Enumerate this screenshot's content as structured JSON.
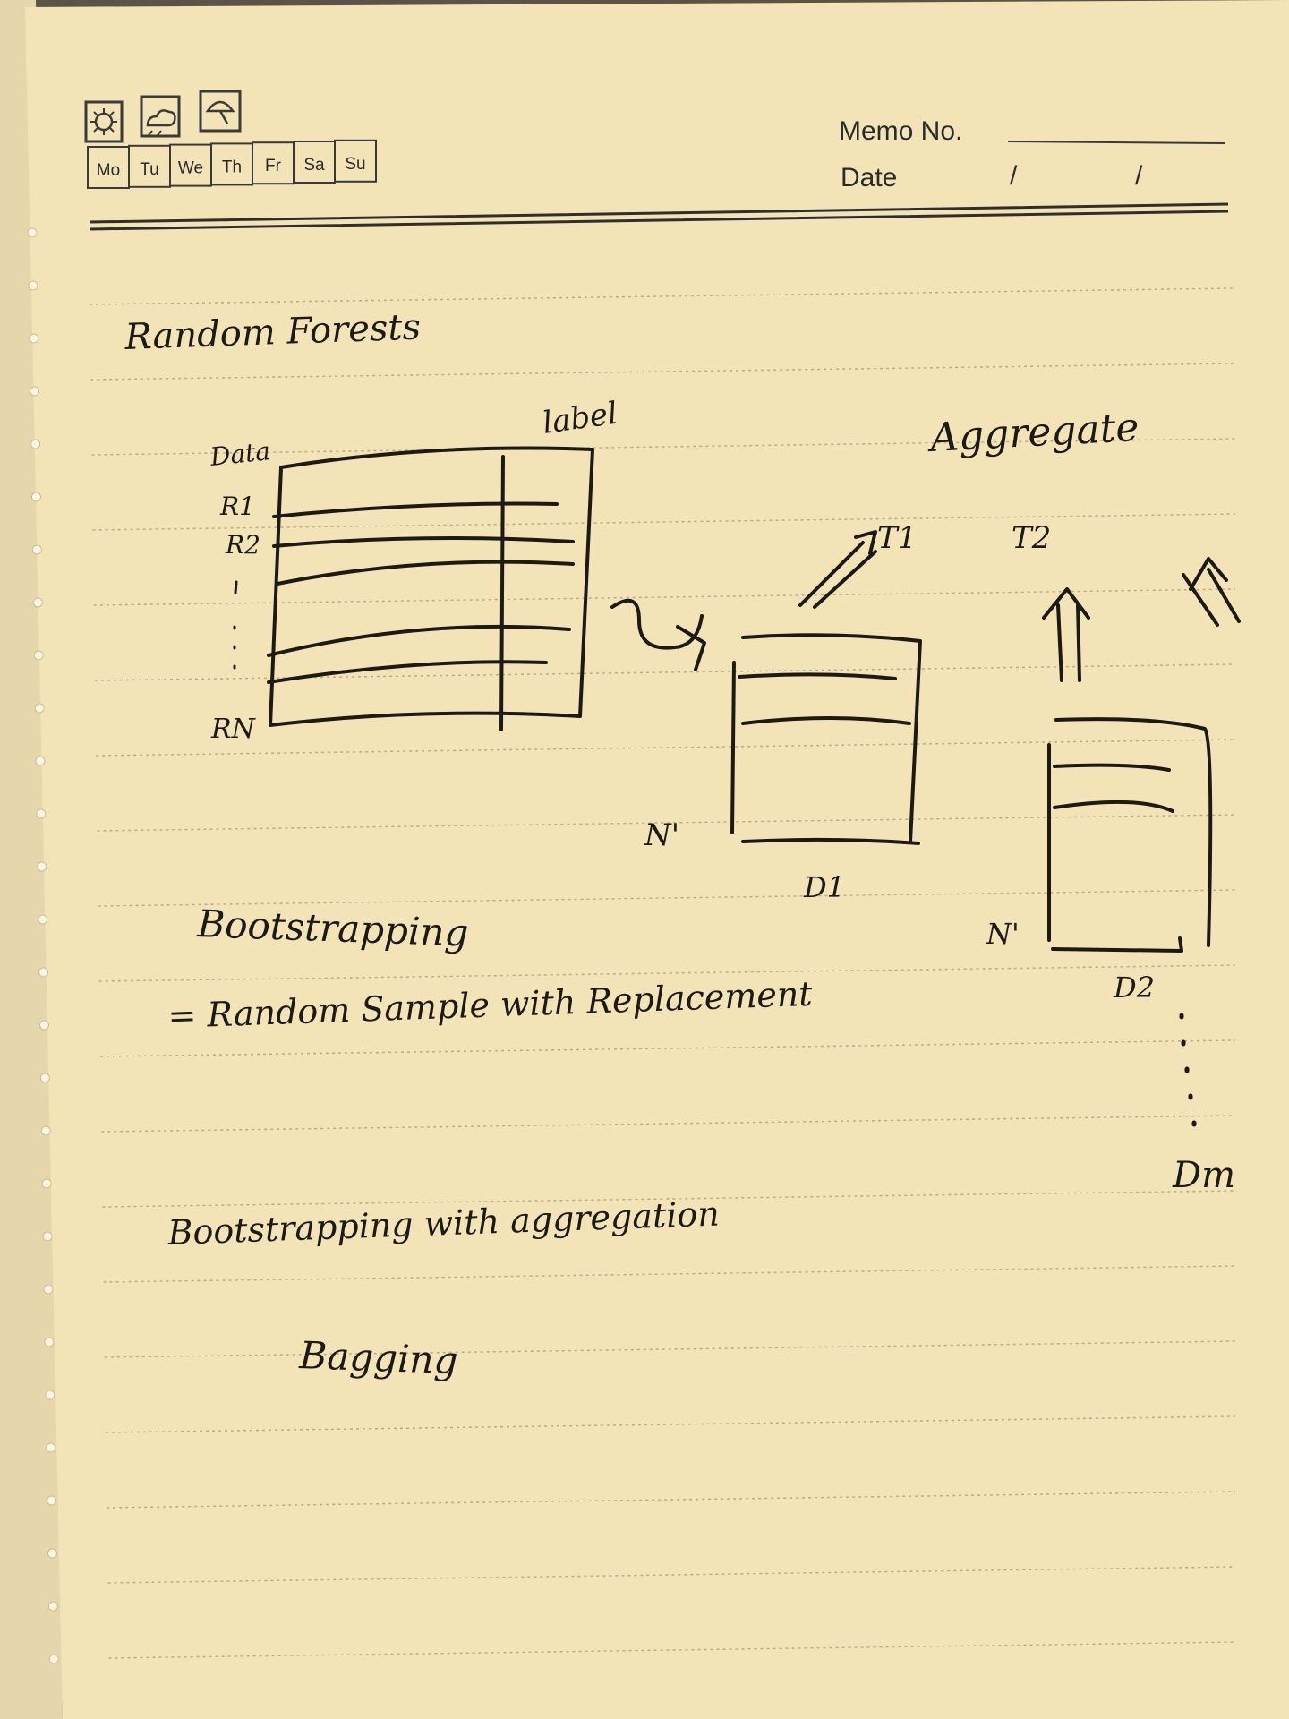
{
  "header": {
    "weather_icons": [
      "sun-icon",
      "cloud-icon",
      "umbrella-icon"
    ],
    "weekdays": [
      "Mo",
      "Tu",
      "We",
      "Th",
      "Fr",
      "Sa",
      "Su"
    ],
    "memo_label": "Memo No.",
    "date_label": "Date",
    "date_separator": "/"
  },
  "notes": {
    "title": "Random Forests",
    "table": {
      "corner_label": "Data",
      "label_column": "label",
      "rows": [
        "R1",
        "R2",
        "RN"
      ]
    },
    "aggregate": "Aggregate",
    "trees": [
      "T1",
      "T2"
    ],
    "subsets": [
      "D1",
      "D2",
      "Dm"
    ],
    "subset_size": "N'",
    "bootstrapping": "Bootstrapping",
    "bootstrapping_def": "= Random Sample with Replacement",
    "bootstrap_aggregation": "Bootstrapping with aggregation",
    "bagging": "Bagging"
  },
  "colors": {
    "paper": "#f3e4b8",
    "ink": "#1c1a16",
    "rule": "#b8ab88"
  }
}
